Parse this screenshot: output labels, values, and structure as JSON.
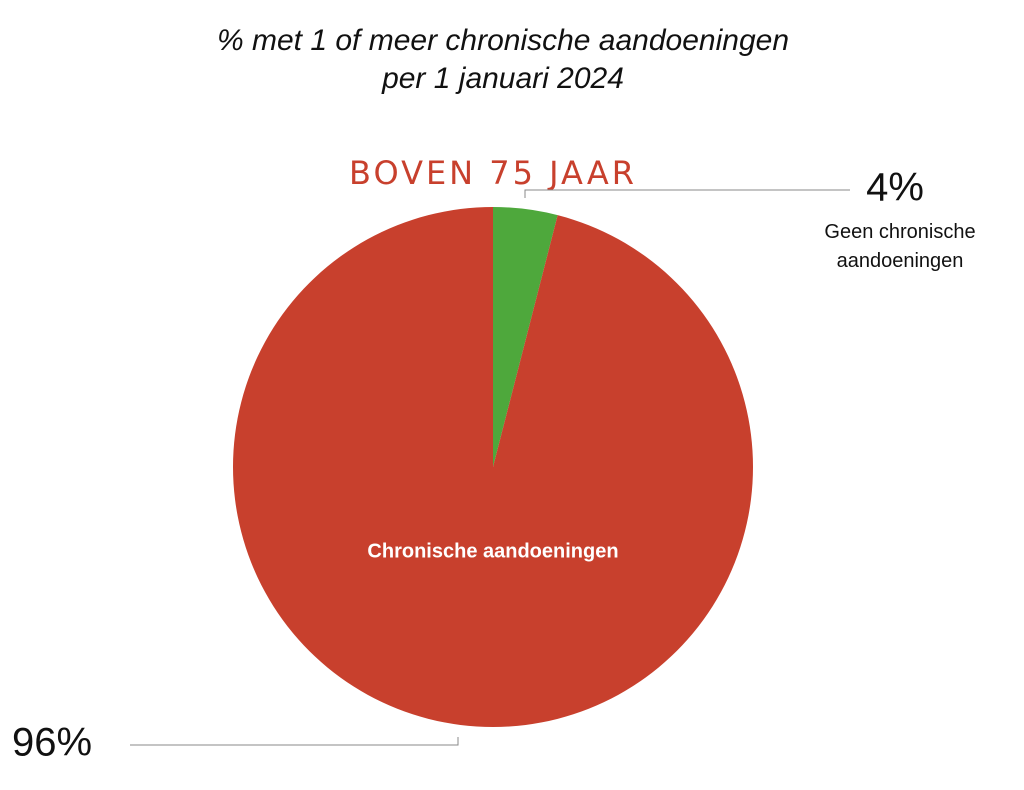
{
  "chart_data": {
    "type": "pie",
    "title": [
      "% met 1 of meer chronische aandoeningen",
      "per 1 januari 2024"
    ],
    "subtitle": "BOVEN 75 JAAR",
    "categories": [
      "Geen chronische aandoeningen",
      "Chronische aandoeningen"
    ],
    "values": [
      4,
      96
    ],
    "value_labels": [
      "4%",
      "96%"
    ],
    "colors": [
      "#4ea83c",
      "#c8402d"
    ]
  }
}
